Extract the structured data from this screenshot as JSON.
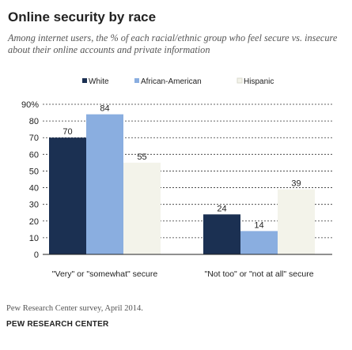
{
  "title": "Online security by race",
  "subtitle": "Among internet users, the % of each racial/ethnic group who feel secure vs. insecure about their online accounts and private information",
  "source": "Pew Research Center survey, April 2014.",
  "org": "PEW RESEARCH CENTER",
  "chart_data": {
    "type": "bar",
    "categories": [
      "\"Very\" or \"somewhat\" secure",
      "\"Not too\" or \"not at all\" secure"
    ],
    "series": [
      {
        "name": "White",
        "values": [
          70,
          24
        ],
        "color": "#1b3052"
      },
      {
        "name": "African-American",
        "values": [
          84,
          14
        ],
        "color": "#8aaee0"
      },
      {
        "name": "Hispanic",
        "values": [
          55,
          39
        ],
        "color": "#f3f3ea"
      }
    ],
    "ytick_labels": [
      "90%",
      "80",
      "70",
      "60",
      "50",
      "40",
      "30",
      "20",
      "10",
      "0"
    ],
    "yticks": [
      90,
      80,
      70,
      60,
      50,
      40,
      30,
      20,
      10,
      0
    ],
    "ylim": [
      0,
      90
    ],
    "legend_position": "top",
    "grid": true
  }
}
